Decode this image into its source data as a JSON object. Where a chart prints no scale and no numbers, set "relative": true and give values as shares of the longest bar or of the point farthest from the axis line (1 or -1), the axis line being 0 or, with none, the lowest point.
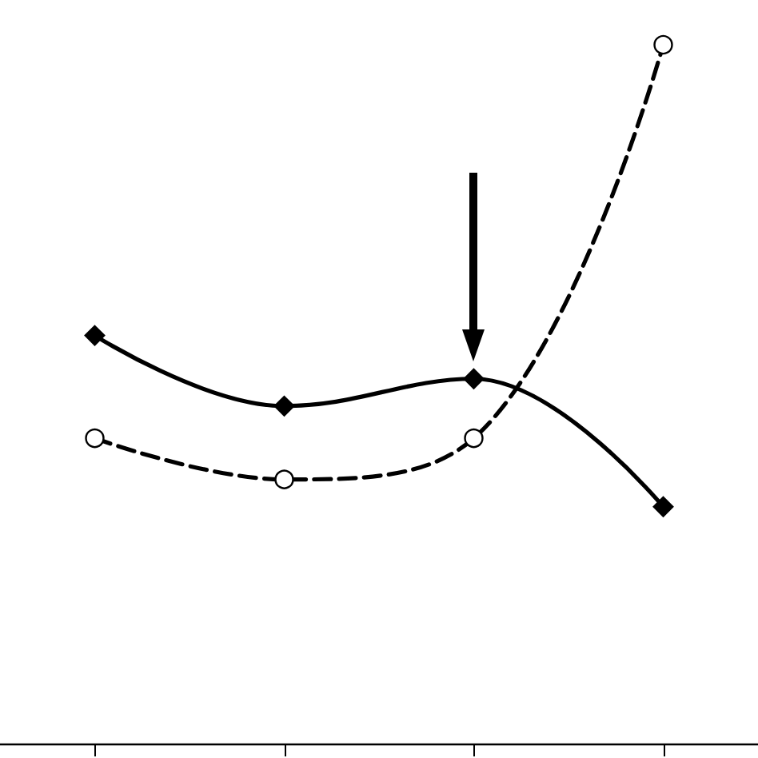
{
  "chart_data": {
    "type": "line",
    "relative": true,
    "categories": [
      null,
      null,
      null,
      null
    ],
    "series": [
      {
        "color": "#000000",
        "marker": "diamond",
        "line_style": "solid",
        "values": [
          0.584,
          0.483,
          0.522,
          0.339
        ]
      },
      {
        "color": "#000000",
        "marker": "circle",
        "line_style": "dashed",
        "values": [
          0.437,
          0.378,
          0.437,
          1
        ]
      }
    ]
  }
}
